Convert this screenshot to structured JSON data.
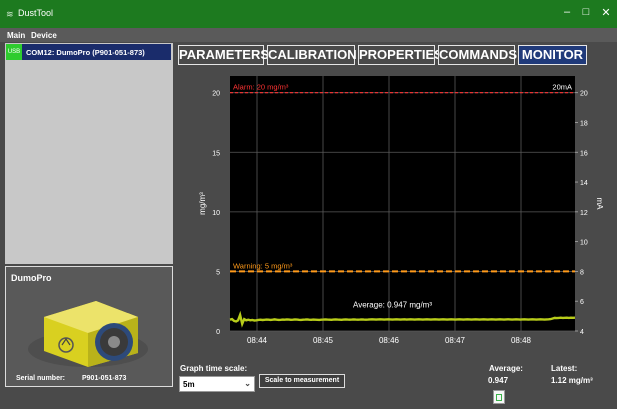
{
  "window": {
    "title": "DustTool",
    "minimize_glyph": "–",
    "maximize_glyph": "□",
    "close_glyph": "✕"
  },
  "menu": {
    "items": [
      "Main",
      "Device"
    ]
  },
  "devices": [
    {
      "badge": "USB",
      "label": "COM12: DumoPro (P901-051-873)"
    }
  ],
  "device_info": {
    "title": "DumoPro",
    "serial_label": "Serial number:",
    "serial_value": "P901-051-873"
  },
  "tabs": [
    "PARAMETERS",
    "CALIBRATION",
    "PROPERTIES",
    "COMMANDS",
    "MONITOR"
  ],
  "active_tab": "MONITOR",
  "chart_data": {
    "type": "line",
    "ylabel": "mg/m³",
    "y2label": "mA",
    "ylim": [
      0,
      21.4
    ],
    "y2lim": [
      4,
      21.12
    ],
    "yticks": [
      0,
      5,
      10,
      15,
      20
    ],
    "y2ticks": [
      4,
      6,
      8,
      10,
      12,
      14,
      16,
      18,
      20
    ],
    "xticks": [
      "08:44",
      "08:45",
      "08:46",
      "08:47",
      "08:48"
    ],
    "thresholds": [
      {
        "label": "Alarm: 20 mg/m³",
        "value": 20,
        "color": "#ff3333",
        "right_label": "20mA"
      },
      {
        "label": "Warning: 5 mg/m³",
        "value": 5,
        "color": "#ff9a1a"
      }
    ],
    "average_label": "Average: 0.947 mg/m³",
    "series": [
      {
        "color": "#b8cc1a",
        "values": [
          0.95,
          1.0,
          0.85,
          0.8,
          0.9,
          1.35,
          0.6,
          1.0,
          0.9,
          0.95,
          0.9,
          0.92,
          0.88,
          0.9,
          0.93,
          0.95,
          0.92,
          0.94,
          0.96,
          0.95,
          0.93,
          0.95,
          0.97,
          0.95,
          0.93,
          0.94,
          0.96,
          0.95,
          0.97,
          0.96,
          0.94,
          0.95,
          0.97,
          0.96,
          0.94,
          0.93,
          0.95,
          0.96,
          0.97,
          0.95,
          0.94,
          0.96,
          0.95,
          0.94,
          0.93,
          0.95,
          0.96,
          0.97,
          0.96,
          0.95,
          0.94,
          0.96,
          0.97,
          0.96,
          0.95,
          0.94,
          0.96,
          0.97,
          0.96,
          0.95,
          0.96,
          0.97,
          0.96,
          0.95,
          0.96,
          0.97,
          0.96,
          0.95,
          0.96,
          0.97,
          0.98,
          0.97,
          0.96,
          0.97,
          0.98,
          0.97,
          0.96,
          0.97,
          0.98,
          0.97,
          0.96,
          0.97,
          0.98,
          0.97,
          0.96,
          0.97,
          0.98,
          0.96,
          0.97,
          0.98,
          0.97,
          0.96,
          0.97,
          0.98,
          0.97,
          0.96,
          0.97,
          0.98,
          0.97,
          0.96,
          0.97,
          0.98,
          0.97,
          0.96,
          0.97,
          0.98,
          0.97,
          0.96,
          0.97,
          0.98,
          0.97,
          0.96,
          0.97,
          0.98,
          0.97,
          0.96,
          0.97,
          0.98,
          0.97,
          0.96,
          0.97,
          0.98,
          0.97,
          0.96,
          0.97,
          0.98,
          0.97,
          0.96,
          0.97,
          0.98,
          0.97,
          0.96,
          0.97,
          0.98,
          0.97,
          0.96,
          0.97,
          0.98,
          0.97,
          0.96,
          0.97,
          0.98,
          0.97,
          0.96,
          0.97,
          0.98,
          0.97,
          0.96,
          0.97,
          0.98,
          0.97,
          0.96,
          0.97,
          0.98,
          0.97,
          0.96,
          0.97,
          0.98,
          1.0,
          1.05,
          1.1,
          1.08,
          1.1,
          1.12,
          1.1,
          1.11,
          1.12,
          1.1,
          1.12,
          1.11,
          1.12
        ]
      }
    ]
  },
  "graph_controls": {
    "label": "Graph time scale:",
    "value": "5m",
    "scale_button": "Scale to measurement"
  },
  "stats": {
    "average_label": "Average:",
    "average_value": "0.947",
    "latest_label": "Latest:",
    "latest_value": "1.12 mg/m³"
  },
  "colors": {
    "titlebar": "#1d7a1f",
    "active_tab": "#203a7a",
    "usb_badge": "#2ecc2e",
    "plot_bg": "#000000"
  }
}
